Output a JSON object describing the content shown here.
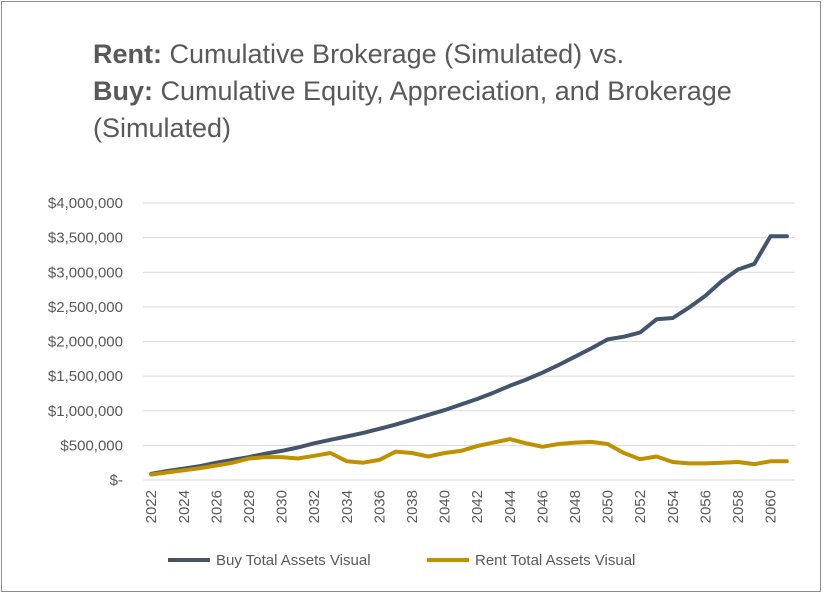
{
  "title": {
    "line1_bold": "Rent:",
    "line1_rest": " Cumulative Brokerage (Simulated) vs.",
    "line2_bold": "Buy:",
    "line2_rest": " Cumulative Equity, Appreciation, and Brokerage",
    "line3": "(Simulated)"
  },
  "chart_data": {
    "type": "line",
    "title": "Rent: Cumulative Brokerage (Simulated) vs. Buy: Cumulative Equity, Appreciation, and Brokerage (Simulated)",
    "xlabel": "",
    "ylabel": "",
    "ylim": [
      0,
      4000000
    ],
    "y_ticks": [
      0,
      500000,
      1000000,
      1500000,
      2000000,
      2500000,
      3000000,
      3500000,
      4000000
    ],
    "y_tick_labels": [
      "$-",
      "$500,000",
      "$1,000,000",
      "$1,500,000",
      "$2,000,000",
      "$2,500,000",
      "$3,000,000",
      "$3,500,000",
      "$4,000,000"
    ],
    "x": [
      2022,
      2023,
      2024,
      2025,
      2026,
      2027,
      2028,
      2029,
      2030,
      2031,
      2032,
      2033,
      2034,
      2035,
      2036,
      2037,
      2038,
      2039,
      2040,
      2041,
      2042,
      2043,
      2044,
      2045,
      2046,
      2047,
      2048,
      2049,
      2050,
      2051,
      2052,
      2053,
      2054,
      2055,
      2056,
      2057,
      2058,
      2059,
      2060,
      2061
    ],
    "x_tick_labels": [
      "2022",
      "2024",
      "2026",
      "2028",
      "2030",
      "2032",
      "2034",
      "2036",
      "2038",
      "2040",
      "2042",
      "2044",
      "2046",
      "2048",
      "2050",
      "2052",
      "2054",
      "2056",
      "2058",
      "2060"
    ],
    "grid": true,
    "legend_position": "bottom",
    "series": [
      {
        "name": "Buy Total Assets Visual",
        "color": "#44546a",
        "values": [
          90000,
          130000,
          165000,
          200000,
          250000,
          290000,
          330000,
          380000,
          420000,
          470000,
          530000,
          580000,
          630000,
          680000,
          740000,
          800000,
          870000,
          940000,
          1010000,
          1090000,
          1170000,
          1260000,
          1360000,
          1450000,
          1550000,
          1660000,
          1780000,
          1900000,
          2030000,
          2070000,
          2130000,
          2320000,
          2340000,
          2490000,
          2660000,
          2870000,
          3040000,
          3120000,
          3520000,
          3520000
        ]
      },
      {
        "name": "Rent Total Assets Visual",
        "color": "#bf9000",
        "values": [
          80000,
          110000,
          140000,
          170000,
          210000,
          250000,
          310000,
          330000,
          330000,
          310000,
          350000,
          390000,
          270000,
          250000,
          290000,
          410000,
          390000,
          340000,
          390000,
          420000,
          490000,
          540000,
          590000,
          530000,
          480000,
          520000,
          540000,
          550000,
          520000,
          390000,
          300000,
          340000,
          260000,
          240000,
          240000,
          250000,
          260000,
          230000,
          270000,
          270000
        ]
      }
    ]
  }
}
